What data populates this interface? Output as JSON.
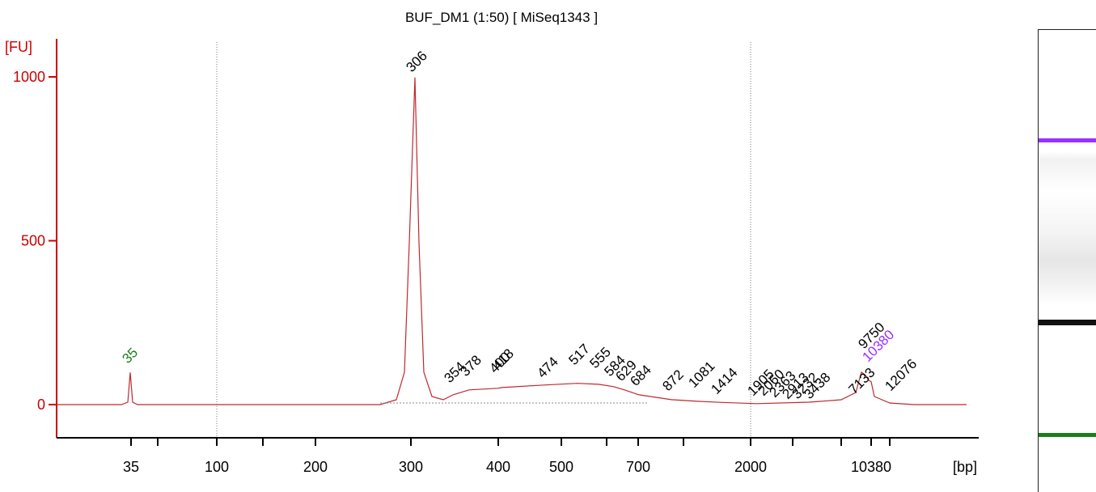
{
  "chart_data": {
    "type": "line",
    "title": "BUF_DM1 (1:50)  [ MiSeq1343 ]",
    "ylabel": "[FU]",
    "xlabel": "[bp]",
    "ylim": [
      -100,
      1070
    ],
    "y_ticks": [
      0,
      500,
      1000
    ],
    "y_tick_labels": [
      "0",
      "500",
      "1000"
    ],
    "x_ticks": [
      "35",
      "100",
      "200",
      "300",
      "400",
      "500",
      "700",
      "2000",
      "10380"
    ],
    "x_gridlines": [
      "100",
      "2000"
    ],
    "series": [
      {
        "color": "#c0282d",
        "points": [
          [
            "35",
            0
          ],
          [
            "35",
            98
          ],
          [
            "35",
            0
          ],
          [
            "300",
            0
          ],
          [
            "306",
            998
          ],
          [
            "300",
            0
          ],
          [
            "354",
            30
          ],
          [
            "378",
            45
          ],
          [
            "400",
            50
          ],
          [
            "418",
            52
          ],
          [
            "474",
            60
          ],
          [
            "517",
            65
          ],
          [
            "555",
            62
          ],
          [
            "584",
            55
          ],
          [
            "629",
            45
          ],
          [
            "684",
            30
          ],
          [
            "872",
            15
          ],
          [
            "1081",
            10
          ],
          [
            "1414",
            7
          ],
          [
            "1905",
            3
          ],
          [
            "2363",
            5
          ],
          [
            "2913",
            8
          ],
          [
            "3438",
            10
          ],
          [
            "7133",
            25
          ],
          [
            "9750",
            90
          ],
          [
            "10380",
            70
          ],
          [
            "12076",
            5
          ]
        ]
      }
    ],
    "peak_labels": [
      {
        "text": "35",
        "color": "#1a7f1a"
      },
      {
        "text": "306",
        "color": "#000000"
      },
      {
        "text": "354",
        "color": "#000000"
      },
      {
        "text": "378",
        "color": "#000000"
      },
      {
        "text": "400",
        "color": "#000000"
      },
      {
        "text": "418",
        "color": "#000000"
      },
      {
        "text": "474",
        "color": "#000000"
      },
      {
        "text": "517",
        "color": "#000000"
      },
      {
        "text": "555",
        "color": "#000000"
      },
      {
        "text": "584",
        "color": "#000000"
      },
      {
        "text": "629",
        "color": "#000000"
      },
      {
        "text": "684",
        "color": "#000000"
      },
      {
        "text": "872",
        "color": "#000000"
      },
      {
        "text": "1081",
        "color": "#000000"
      },
      {
        "text": "1414",
        "color": "#000000"
      },
      {
        "text": "1905",
        "color": "#000000"
      },
      {
        "text": "2060",
        "color": "#000000"
      },
      {
        "text": "2363",
        "color": "#000000"
      },
      {
        "text": "2913",
        "color": "#000000"
      },
      {
        "text": "3232",
        "color": "#000000"
      },
      {
        "text": "3438",
        "color": "#000000"
      },
      {
        "text": "7133",
        "color": "#000000"
      },
      {
        "text": "9750",
        "color": "#000000"
      },
      {
        "text": "10380",
        "color": "#9b30ff"
      },
      {
        "text": "12076",
        "color": "#000000"
      }
    ],
    "axis_color": "#cc0000",
    "gel": {
      "bands": [
        {
          "label": "upper marker",
          "color": "#9b30ff"
        },
        {
          "label": "main band",
          "color": "#111111"
        },
        {
          "label": "lower marker",
          "color": "#1a7f1a"
        }
      ]
    }
  }
}
